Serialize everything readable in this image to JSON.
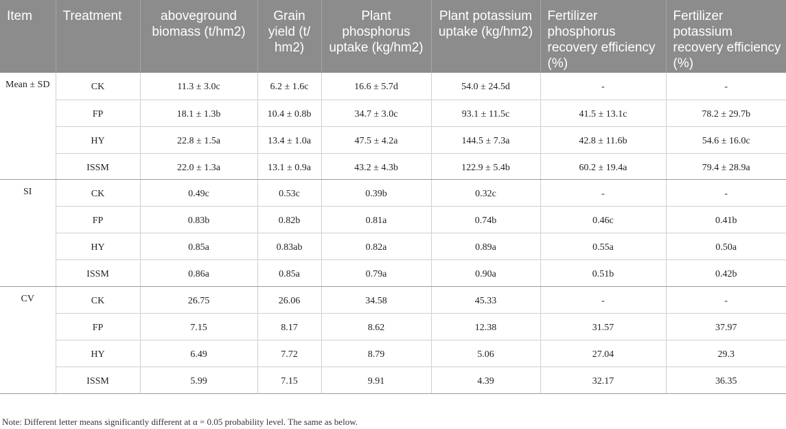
{
  "table": {
    "headers": [
      "Item",
      "Treatment",
      "aboveground biomass (t/hm2)",
      "Grain yield (t/ hm2)",
      "Plant phosphorus uptake (kg/hm2)",
      "Plant potassium uptake (kg/hm2)",
      "Fertilizer phosphorus recovery efficiency (%)",
      "Fertilizer potassium recovery efficiency (%)"
    ],
    "groups": [
      {
        "item": "Mean ± SD",
        "rows": [
          [
            "CK",
            "11.3 ± 3.0c",
            "6.2 ± 1.6c",
            "16.6 ± 5.7d",
            "54.0 ± 24.5d",
            "-",
            "-"
          ],
          [
            "FP",
            "18.1 ± 1.3b",
            "10.4 ± 0.8b",
            "34.7 ± 3.0c",
            "93.1 ± 11.5c",
            "41.5 ± 13.1c",
            "78.2 ± 29.7b"
          ],
          [
            "HY",
            "22.8 ± 1.5a",
            "13.4 ± 1.0a",
            "47.5 ± 4.2a",
            "144.5 ± 7.3a",
            "42.8 ± 11.6b",
            "54.6 ± 16.0c"
          ],
          [
            "ISSM",
            "22.0 ± 1.3a",
            "13.1 ± 0.9a",
            "43.2 ± 4.3b",
            "122.9 ± 5.4b",
            "60.2 ± 19.4a",
            "79.4 ± 28.9a"
          ]
        ]
      },
      {
        "item": "SI",
        "rows": [
          [
            "CK",
            "0.49c",
            "0.53c",
            "0.39b",
            "0.32c",
            "-",
            "-"
          ],
          [
            "FP",
            "0.83b",
            "0.82b",
            "0.81a",
            "0.74b",
            "0.46c",
            "0.41b"
          ],
          [
            "HY",
            "0.85a",
            "0.83ab",
            "0.82a",
            "0.89a",
            "0.55a",
            "0.50a"
          ],
          [
            "ISSM",
            "0.86a",
            "0.85a",
            "0.79a",
            "0.90a",
            "0.51b",
            "0.42b"
          ]
        ]
      },
      {
        "item": "CV",
        "rows": [
          [
            "CK",
            "26.75",
            "26.06",
            "34.58",
            "45.33",
            "-",
            "-"
          ],
          [
            "FP",
            "7.15",
            "8.17",
            "8.62",
            "12.38",
            "31.57",
            "37.97"
          ],
          [
            "HY",
            "6.49",
            "7.72",
            "8.79",
            "5.06",
            "27.04",
            "29.3"
          ],
          [
            "ISSM",
            "5.99",
            "7.15",
            "9.91",
            "4.39",
            "32.17",
            "36.35"
          ]
        ]
      }
    ]
  },
  "note": "Note: Different letter means significantly different at α = 0.05 probability level. The same as below."
}
